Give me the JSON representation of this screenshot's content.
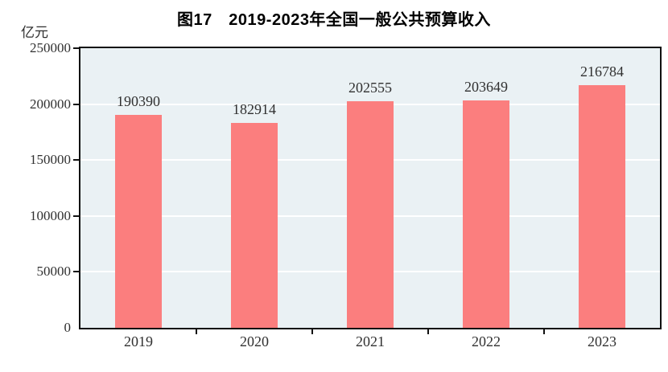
{
  "title": "图17　2019-2023年全国一般公共预算收入",
  "chart_data": {
    "type": "bar",
    "categories": [
      "2019",
      "2020",
      "2021",
      "2022",
      "2023"
    ],
    "values": [
      190390,
      182914,
      202555,
      203649,
      216784
    ],
    "title": "图17　2019-2023年全国一般公共预算收入",
    "xlabel": "",
    "ylabel": "亿元",
    "ylim": [
      0,
      250000
    ],
    "yticks": [
      0,
      50000,
      100000,
      150000,
      200000,
      250000
    ],
    "grid": true,
    "legend": "none",
    "data_labels": true,
    "colors": {
      "bar_fill": "#FB7E7E",
      "plot_background": "#EAF1F4",
      "gridline": "#FFFFFF",
      "axis": "#111111",
      "label_text": "#303030",
      "title_text": "#000000",
      "page_background": "#FFFFFF"
    }
  }
}
